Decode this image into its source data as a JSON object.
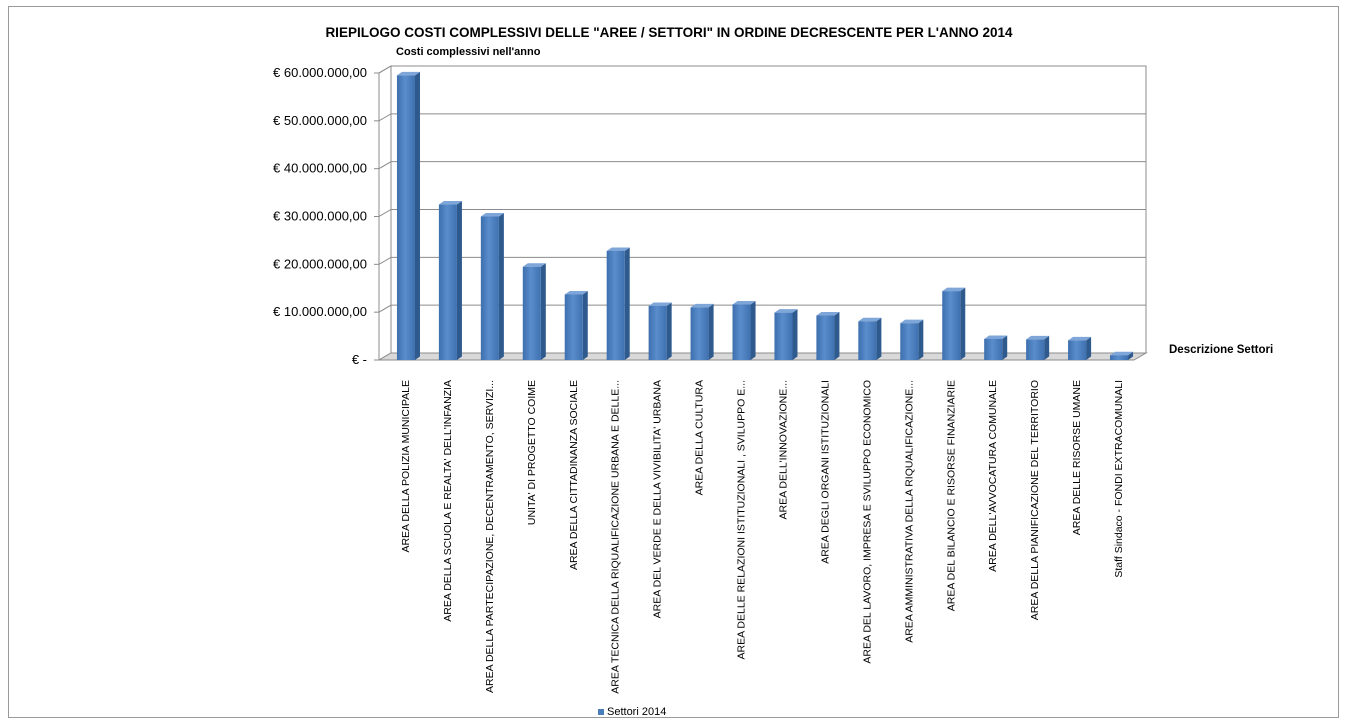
{
  "chart_data": {
    "type": "bar",
    "title": "RIEPILOGO COSTI COMPLESSIVI DELLE \"AREE / SETTORI\" IN ORDINE DECRESCENTE PER L'ANNO 2014",
    "ylabel": "Costi complessivi  nell'anno",
    "xlabel": "Descrizione Settori",
    "ylim": [
      0,
      60000000
    ],
    "ytick_values": [
      0,
      10000000,
      20000000,
      30000000,
      40000000,
      50000000,
      60000000
    ],
    "ytick_labels": [
      "€ -",
      "€ 10.000.000,00",
      "€ 20.000.000,00",
      "€ 30.000.000,00",
      "€ 40.000.000,00",
      "€ 50.000.000,00",
      "€ 60.000.000,00"
    ],
    "grid": true,
    "legend_position": "bottom",
    "bar_color": "#4a7ebb",
    "categories": [
      "AREA DELLA POLIZIA MUNICIPALE",
      "AREA DELLA SCUOLA E REALTA' DELL'INFANZIA",
      "AREA DELLA PARTECIPAZIONE, DECENTRAMENTO, SERVIZI...",
      "UNITA' DI PROGETTO COIME",
      "AREA DELLA CITTADINANZA SOCIALE",
      "AREA TECNICA DELLA RIQUALIFICAZIONE URBANA E DELLE...",
      "AREA DEL VERDE E DELLA VIVIBILITA' URBANA",
      "AREA DELLA CULTURA",
      "AREA DELLE RELAZIONI ISTITUZIONALI , SVILUPPO E...",
      "AREA DELL'INNOVAZIONE...",
      "AREA DEGLI ORGANI ISTITUZIONALI",
      "AREA DEL LAVORO, IMPRESA E SVILUPPO ECONOMICO",
      "AREA AMMINISTRATIVA DELLA RIQUALIFICAZIONE...",
      "AREA DEL BILANCIO E RISORSE FINANZIARIE",
      "AREA DELL'AVVOCATURA COMUNALE",
      "AREA DELLA PIANIFICAZIONE DEL TERRITORIO",
      "AREA DELLE RISORSE UMANE",
      "Staff Sindaco - FONDI EXTRACOMUNALI"
    ],
    "series": [
      {
        "name": "Settori 2014",
        "values": [
          59500000,
          32500000,
          30000000,
          19500000,
          13700000,
          22800000,
          11300000,
          11000000,
          11600000,
          9900000,
          9300000,
          8100000,
          7700000,
          14400000,
          4400000,
          4300000,
          4100000,
          1000000
        ]
      }
    ]
  }
}
